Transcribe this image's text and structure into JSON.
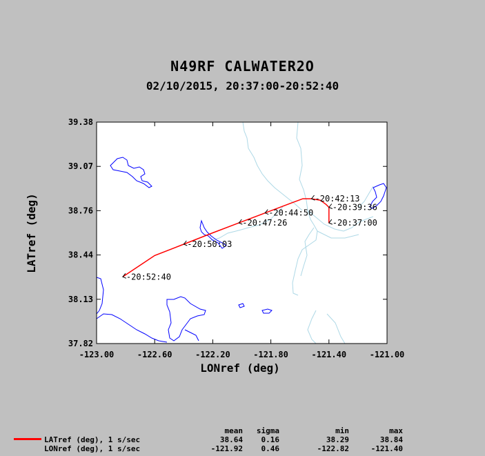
{
  "header": {
    "title": "N49RF CALWATER2O",
    "subtitle": "02/10/2015, 20:37:00-20:52:40"
  },
  "chart_data": {
    "type": "line",
    "xlabel": "LONref (deg)",
    "ylabel": "LATref (deg)",
    "xlim": [
      -123.0,
      -121.0
    ],
    "ylim": [
      37.82,
      39.38
    ],
    "x_ticks": [
      "-123.00",
      "-122.60",
      "-122.20",
      "-121.80",
      "-121.40",
      "-121.00"
    ],
    "y_ticks": [
      "37.82",
      "38.13",
      "38.44",
      "38.76",
      "39.07",
      "39.38"
    ],
    "grid": false,
    "series": [
      {
        "name": "LATref (deg), 1 s/sec",
        "color": "#ff0000",
        "points": [
          [
            -121.4,
            38.67
          ],
          [
            -121.4,
            38.72
          ],
          [
            -121.4,
            38.78
          ],
          [
            -121.42,
            38.8
          ],
          [
            -121.46,
            38.83
          ],
          [
            -121.52,
            38.84
          ],
          [
            -121.58,
            38.84
          ],
          [
            -121.66,
            38.81
          ],
          [
            -121.84,
            38.74
          ],
          [
            -122.02,
            38.67
          ],
          [
            -122.2,
            38.6
          ],
          [
            -122.4,
            38.52
          ],
          [
            -122.6,
            38.44
          ],
          [
            -122.82,
            38.29
          ]
        ]
      }
    ],
    "annotations": [
      {
        "label": "20:37:00",
        "lon": -121.4,
        "lat": 38.67
      },
      {
        "label": "20:39:36",
        "lon": -121.4,
        "lat": 38.78
      },
      {
        "label": "20:42:13",
        "lon": -121.52,
        "lat": 38.84
      },
      {
        "label": "20:44:50",
        "lon": -121.84,
        "lat": 38.74
      },
      {
        "label": "20:47:26",
        "lon": -122.02,
        "lat": 38.67
      },
      {
        "label": "20:50:03",
        "lon": -122.4,
        "lat": 38.52
      },
      {
        "label": "20:52:40",
        "lon": -122.82,
        "lat": 38.29
      }
    ]
  },
  "map_colors": {
    "coast": "#0000ff",
    "rivers": "#add8e6"
  },
  "stats": {
    "headers": [
      "mean",
      "sigma",
      "min",
      "max"
    ],
    "rows": [
      {
        "name": "LATref (deg), 1 s/sec",
        "mean": "38.64",
        "sigma": "0.16",
        "min": "38.29",
        "max": "38.84"
      },
      {
        "name": "LONref (deg), 1 s/sec",
        "mean": "-121.92",
        "sigma": "0.46",
        "min": "-122.82",
        "max": "-121.40"
      }
    ]
  }
}
